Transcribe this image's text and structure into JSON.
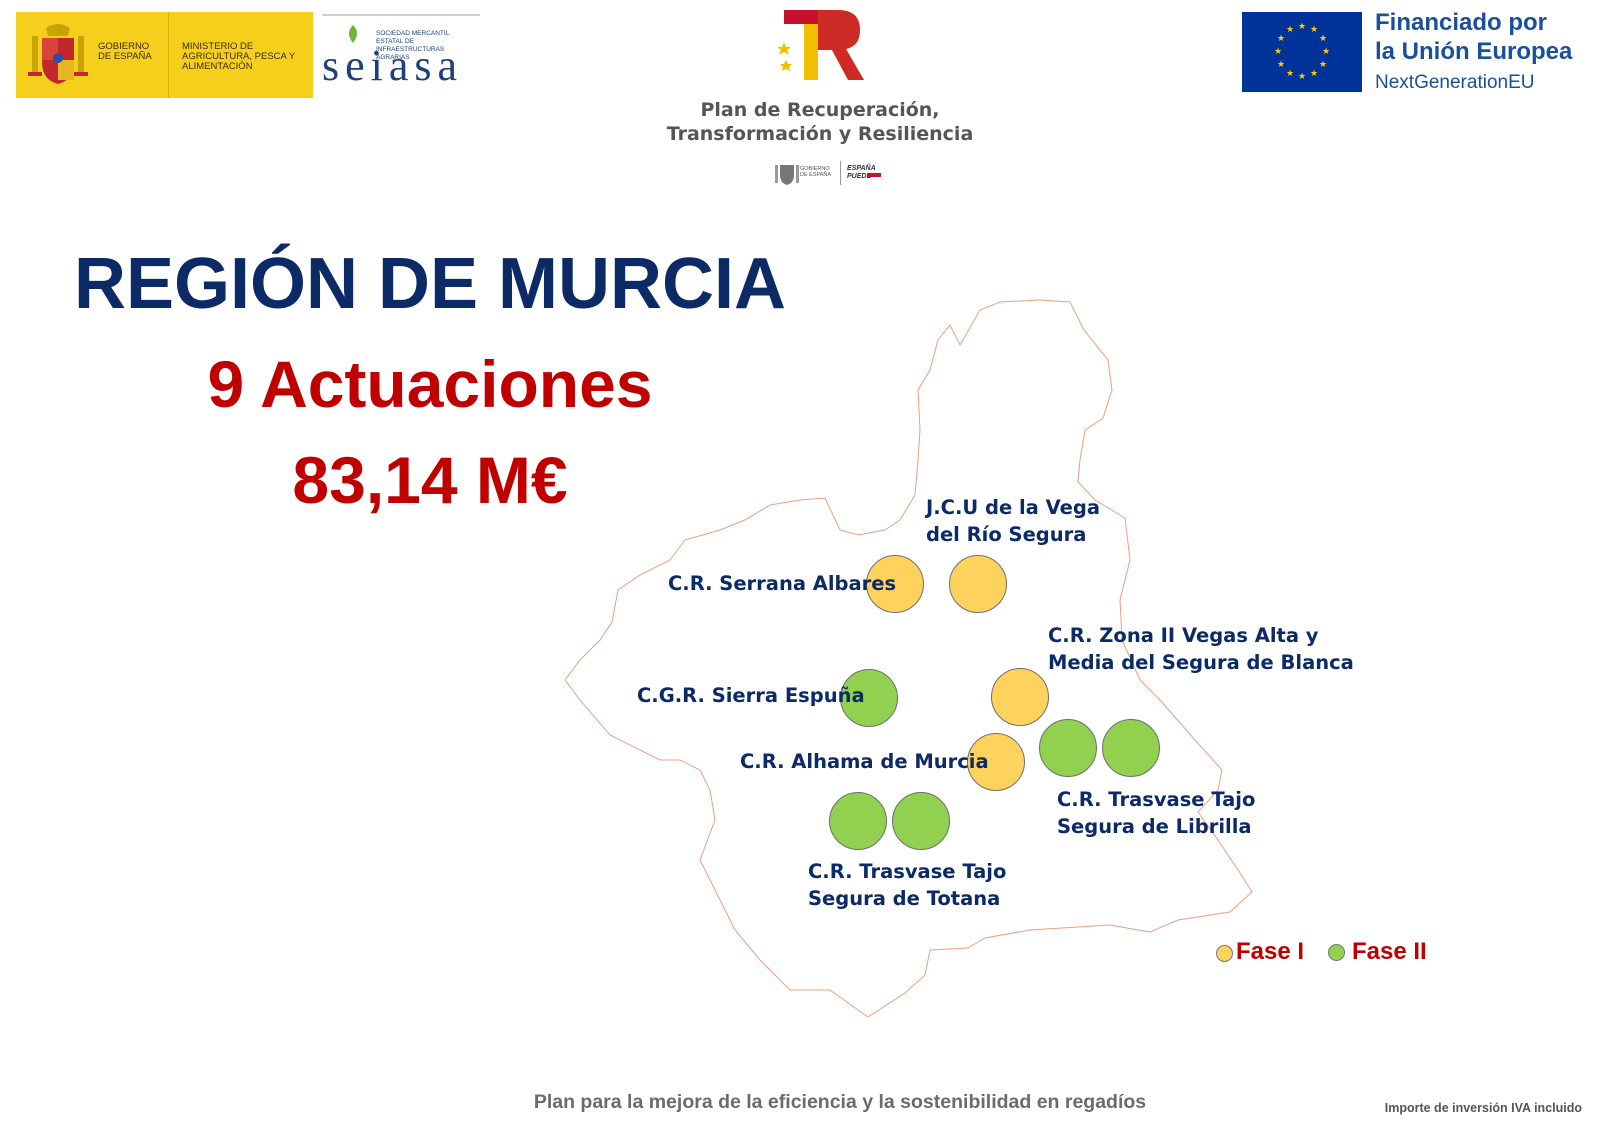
{
  "header": {
    "gov_text": "Gobierno de España",
    "ministry_text": "Ministerio de Agricultura, Pesca y Alimentación",
    "seiasa_small": "Sociedad Mercantil Estatal de Infraestructuras Agrarias",
    "seiasa_name": "seiasa",
    "plan_title_line1": "Plan de Recuperación,",
    "plan_title_line2": "Transformación y Resiliencia",
    "plan_gov_small": "Gobierno de España",
    "plan_espana": "España Puede",
    "eu_line1": "Financiado por",
    "eu_line2": "la Unión Europea",
    "eu_line3": "NextGenerationEU"
  },
  "main": {
    "region": "REGIÓN DE MURCIA",
    "count": "9 Actuaciones",
    "amount": "83,14 M€"
  },
  "colors": {
    "fase_i": "#fdd35e",
    "fase_ii": "#92d050",
    "title_blue": "#0c2a66",
    "title_red": "#c00000"
  },
  "map": {
    "labels": {
      "jcu_1": "J.C.U de la Vega",
      "jcu_2": "del Río Segura",
      "serrana": "C.R. Serrana Albares",
      "zona_1": "C.R. Zona II Vegas Alta y",
      "zona_2": "Media del Segura de Blanca",
      "espuna": "C.G.R. Sierra Espuña",
      "alhama": "C.R. Alhama de Murcia",
      "librilla_1": "C.R. Trasvase Tajo",
      "librilla_2": "Segura de Librilla",
      "totana_1": "C.R. Trasvase Tajo",
      "totana_2": "Segura de Totana"
    },
    "markers": [
      {
        "name": "serrana-albares-marker",
        "phase": "Fase I"
      },
      {
        "name": "jcu-vega-marker",
        "phase": "Fase I"
      },
      {
        "name": "zona-ii-blanca-marker",
        "phase": "Fase I"
      },
      {
        "name": "sierra-espuna-marker",
        "phase": "Fase II"
      },
      {
        "name": "alhama-murcia-marker",
        "phase": "Fase I"
      },
      {
        "name": "librilla-marker-1",
        "phase": "Fase II"
      },
      {
        "name": "librilla-marker-2",
        "phase": "Fase II"
      },
      {
        "name": "totana-marker-1",
        "phase": "Fase II"
      },
      {
        "name": "totana-marker-2",
        "phase": "Fase II"
      }
    ],
    "legend": {
      "fase_i": "Fase I",
      "fase_ii": "Fase II"
    }
  },
  "footer": {
    "plan": "Plan para la mejora de la eficiencia y la sostenibilidad en regadíos",
    "note": "Importe de inversión IVA incluido"
  }
}
